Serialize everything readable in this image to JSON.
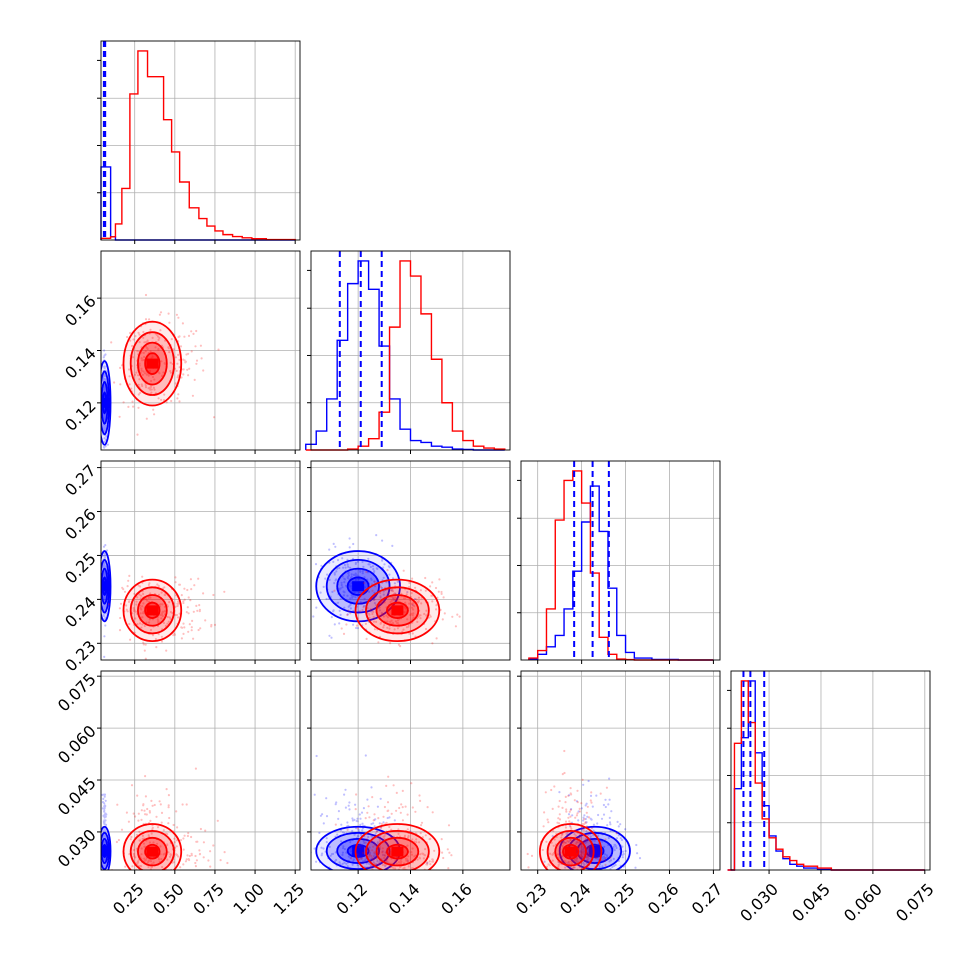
{
  "chart_data": {
    "type": "corner",
    "colors": {
      "series_a": "#0000ff",
      "series_b": "#ff0000"
    },
    "grid": true,
    "title": "",
    "parameters": [
      {
        "id": "p1",
        "label": "",
        "range": [
          0.04,
          1.28
        ],
        "ticks": [
          0.25,
          0.5,
          0.75,
          1.0,
          1.25
        ],
        "tick_labels": [
          "0.25",
          "0.50",
          "0.75",
          "1.00",
          "1.25"
        ]
      },
      {
        "id": "p2",
        "label": "",
        "range": [
          0.102,
          0.178
        ],
        "ticks": [
          0.12,
          0.14,
          0.16
        ],
        "tick_labels": [
          "0.12",
          "0.14",
          "0.16"
        ]
      },
      {
        "id": "p3",
        "label": "",
        "range": [
          0.2262,
          0.2715
        ],
        "ticks": [
          0.23,
          0.24,
          0.25,
          0.26,
          0.27
        ],
        "tick_labels": [
          "0.23",
          "0.24",
          "0.25",
          "0.26",
          "0.27"
        ]
      },
      {
        "id": "p4",
        "label": "",
        "range": [
          0.019,
          0.0765
        ],
        "ticks": [
          0.03,
          0.045,
          0.06,
          0.075
        ],
        "tick_labels": [
          "0.030",
          "0.045",
          "0.060",
          "0.075"
        ]
      }
    ],
    "series": [
      {
        "color": "blue",
        "quantiles": {
          "p1": [
            0.058,
            0.062,
            0.066
          ],
          "p2": [
            0.113,
            0.121,
            0.129
          ],
          "p3": [
            0.2383,
            0.2425,
            0.2462
          ],
          "p4": [
            0.0226,
            0.0246,
            0.0286
          ]
        },
        "centers": {
          "p1": 0.062,
          "p2": 0.12,
          "p3": 0.243,
          "p4": 0.0245
        },
        "spreads": {
          "p1": 0.004,
          "p2": 0.008,
          "p3": 0.004,
          "p4": 0.0035
        }
      },
      {
        "color": "red",
        "centers": {
          "p1": 0.36,
          "p2": 0.135,
          "p3": 0.2375,
          "p4": 0.0243
        },
        "spreads": {
          "p1": 0.09,
          "p2": 0.008,
          "p3": 0.0035,
          "p4": 0.004
        }
      }
    ],
    "histograms": {
      "p1": {
        "bins": [
          0.04,
          0.1,
          0.13,
          0.17,
          0.22,
          0.27,
          0.33,
          0.43,
          0.48,
          0.53,
          0.59,
          0.65,
          0.7,
          0.75,
          0.8,
          0.86,
          0.92,
          0.98,
          1.07,
          1.25
        ],
        "blue": [
          34,
          1.5,
          0,
          0,
          0,
          0,
          0,
          0,
          0,
          0,
          0,
          0,
          0,
          0,
          0,
          0,
          0,
          0,
          0
        ],
        "red": [
          0.8,
          1.5,
          7.5,
          24,
          68,
          88,
          76,
          56,
          41,
          27,
          15,
          10,
          6.5,
          4.2,
          2.5,
          1.6,
          1.0,
          0.6,
          0.2
        ]
      },
      "p2": {
        "bins": [
          0.1,
          0.104,
          0.108,
          0.112,
          0.116,
          0.12,
          0.124,
          0.128,
          0.132,
          0.136,
          0.14,
          0.144,
          0.148,
          0.152,
          0.156,
          0.16,
          0.164,
          0.168,
          0.172,
          0.176
        ],
        "blue": [
          3,
          10,
          27,
          58,
          88,
          100,
          85,
          55,
          27,
          11,
          5,
          4,
          2,
          1.5,
          0.5,
          0.3,
          0,
          0,
          0
        ],
        "red": [
          0,
          0,
          0,
          0,
          0.5,
          2,
          6,
          20,
          65,
          100,
          92,
          72,
          48,
          25,
          10,
          5,
          2,
          1,
          0.5
        ]
      },
      "p3": {
        "bins": [
          0.228,
          0.23,
          0.232,
          0.234,
          0.236,
          0.238,
          0.24,
          0.242,
          0.244,
          0.246,
          0.248,
          0.25,
          0.252,
          0.256,
          0.262,
          0.27
        ],
        "blue": [
          0.5,
          3,
          7,
          13,
          27,
          47,
          73,
          92,
          68,
          38,
          13,
          4,
          1,
          0.3,
          0
        ],
        "red": [
          1,
          5,
          27,
          74,
          95,
          100,
          83,
          46,
          12,
          3,
          0.5,
          0.2,
          0,
          0,
          0
        ]
      },
      "p4": {
        "bins": [
          0.018,
          0.02,
          0.022,
          0.024,
          0.026,
          0.028,
          0.03,
          0.032,
          0.034,
          0.036,
          0.038,
          0.04,
          0.044,
          0.048,
          0.075
        ],
        "blue": [
          0,
          43,
          70,
          100,
          62,
          34,
          18,
          10,
          6,
          3,
          2,
          1,
          0.3,
          0
        ],
        "red": [
          0,
          67,
          100,
          78,
          46,
          27,
          17,
          11,
          7,
          5,
          3,
          2,
          1,
          0
        ]
      }
    }
  }
}
